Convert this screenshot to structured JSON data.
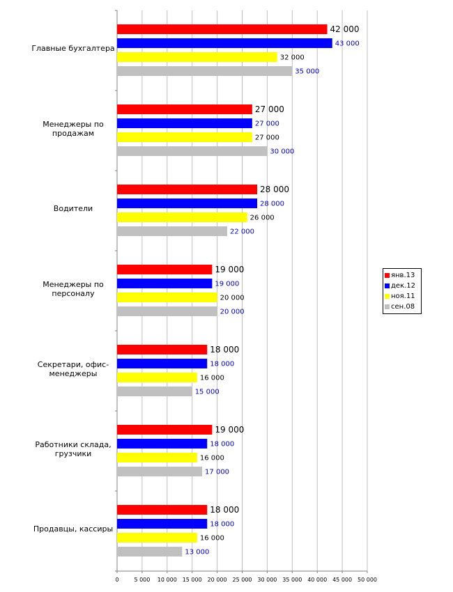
{
  "chart_data": {
    "type": "bar",
    "orientation": "horizontal",
    "categories": [
      "Главные бухгалтера",
      "Менеджеры по продажам",
      "Водители",
      "Менеджеры по персоналу",
      "Секретари, офис-менеджеры",
      "Работники склада, грузчики",
      "Продавцы, кассиры"
    ],
    "category_label_lines": [
      [
        "Главные бухгалтера"
      ],
      [
        "Менеджеры по",
        "продажам"
      ],
      [
        "Водители"
      ],
      [
        "Менеджеры по",
        "персоналу"
      ],
      [
        "Секретари, офис-",
        "менеджеры"
      ],
      [
        "Работники склада,",
        "грузчики"
      ],
      [
        "Продавцы, кассиры"
      ]
    ],
    "series": [
      {
        "name": "янв.13",
        "color": "#ff0000",
        "label_color": "#000000",
        "values": [
          42000,
          27000,
          28000,
          19000,
          18000,
          19000,
          18000
        ]
      },
      {
        "name": "дек.12",
        "color": "#0000ff",
        "label_color": "#0000cc",
        "values": [
          43000,
          27000,
          28000,
          19000,
          18000,
          18000,
          18000
        ]
      },
      {
        "name": "ноя.11",
        "color": "#ffff00",
        "label_color": "#000000",
        "values": [
          32000,
          27000,
          26000,
          20000,
          16000,
          16000,
          16000
        ]
      },
      {
        "name": "сен.08",
        "color": "#c0c0c0",
        "label_color": "#0000cc",
        "values": [
          35000,
          30000,
          22000,
          20000,
          15000,
          17000,
          13000
        ]
      }
    ],
    "data_labels": [
      [
        "42 000",
        "27 000",
        "28 000",
        "19 000",
        "18 000",
        "19 000",
        "18 000"
      ],
      [
        "43 000",
        "27 000",
        "28 000",
        "19 000",
        "18 000",
        "18 000",
        "18 000"
      ],
      [
        "32 000",
        "27 000",
        "26 000",
        "20 000",
        "16 000",
        "16 000",
        "16 000"
      ],
      [
        "35 000",
        "30 000",
        "22 000",
        "20 000",
        "15 000",
        "17 000",
        "13 000"
      ]
    ],
    "xlim": [
      0,
      50000
    ],
    "xticks": [
      0,
      5000,
      10000,
      15000,
      20000,
      25000,
      30000,
      35000,
      40000,
      45000,
      50000
    ],
    "xtick_labels": [
      "0",
      "5 000",
      "10 000",
      "15 000",
      "20 000",
      "25 000",
      "30 000",
      "35 000",
      "40 000",
      "45 000",
      "50 000"
    ],
    "grid": true,
    "legend_position": "right"
  }
}
